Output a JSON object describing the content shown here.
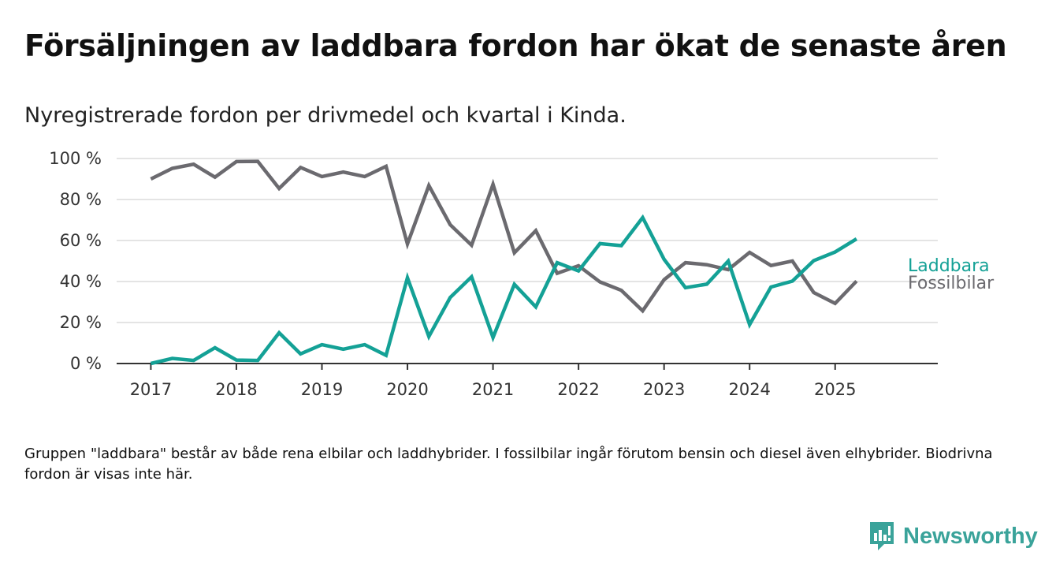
{
  "title": "Försäljningen av laddbara fordon har ökat de senaste åren",
  "subtitle": "Nyregistrerade fordon per drivmedel och kvartal i Kinda.",
  "note": "Gruppen \"laddbara\" består av både rena elbilar och laddhybrider. I fossilbilar ingår förutom bensin och diesel även elhybrider. Biodrivna fordon är visas inte här.",
  "brand": {
    "name": "Newsworthy",
    "icon": "newsworthy-logo-icon",
    "color": "#3aa39a"
  },
  "chart_data": {
    "type": "line",
    "x": [
      2017.0,
      2017.25,
      2017.5,
      2017.75,
      2018.0,
      2018.25,
      2018.5,
      2018.75,
      2019.0,
      2019.25,
      2019.5,
      2019.75,
      2020.0,
      2020.25,
      2020.5,
      2020.75,
      2021.0,
      2021.25,
      2021.5,
      2021.75,
      2022.0,
      2022.25,
      2022.5,
      2022.75,
      2023.0,
      2023.25,
      2023.5,
      2023.75,
      2024.0,
      2024.25,
      2024.5,
      2024.75,
      2025.0,
      2025.25
    ],
    "series": [
      {
        "name": "Laddbara",
        "color": "#14a196",
        "values": [
          0,
          2.5,
          1.5,
          7.7,
          1.7,
          1.5,
          15,
          4.7,
          9.2,
          7,
          9.2,
          4,
          41.8,
          13.2,
          32.2,
          42.3,
          12.7,
          38.6,
          27.6,
          49.2,
          45.2,
          58.5,
          57.5,
          71.2,
          50.8,
          37,
          38.7,
          50,
          19,
          37.3,
          40.2,
          50.2,
          54.4,
          60.8
        ]
      },
      {
        "name": "Fossilbilar",
        "color": "#6b6a6f",
        "values": [
          90,
          95.2,
          97.2,
          90.9,
          98.5,
          98.6,
          85.4,
          95.6,
          91.2,
          93.4,
          91.2,
          96.2,
          58.3,
          86.8,
          67.7,
          57.7,
          87.4,
          54,
          64.8,
          44,
          47.7,
          39.8,
          35.7,
          25.7,
          40.9,
          49.2,
          48.2,
          45.8,
          54.2,
          47.8,
          50,
          34.6,
          29.3,
          40.2
        ]
      }
    ],
    "x_ticks": [
      "2017",
      "2018",
      "2019",
      "2020",
      "2021",
      "2022",
      "2023",
      "2024",
      "2025"
    ],
    "y_ticks": [
      "0 %",
      "20 %",
      "40 %",
      "60 %",
      "80 %",
      "100 %"
    ],
    "ylim": [
      0,
      100
    ],
    "xlim": [
      2016.6,
      2026.2
    ],
    "grid": true,
    "legend": "direct labels at line ends (right)"
  }
}
